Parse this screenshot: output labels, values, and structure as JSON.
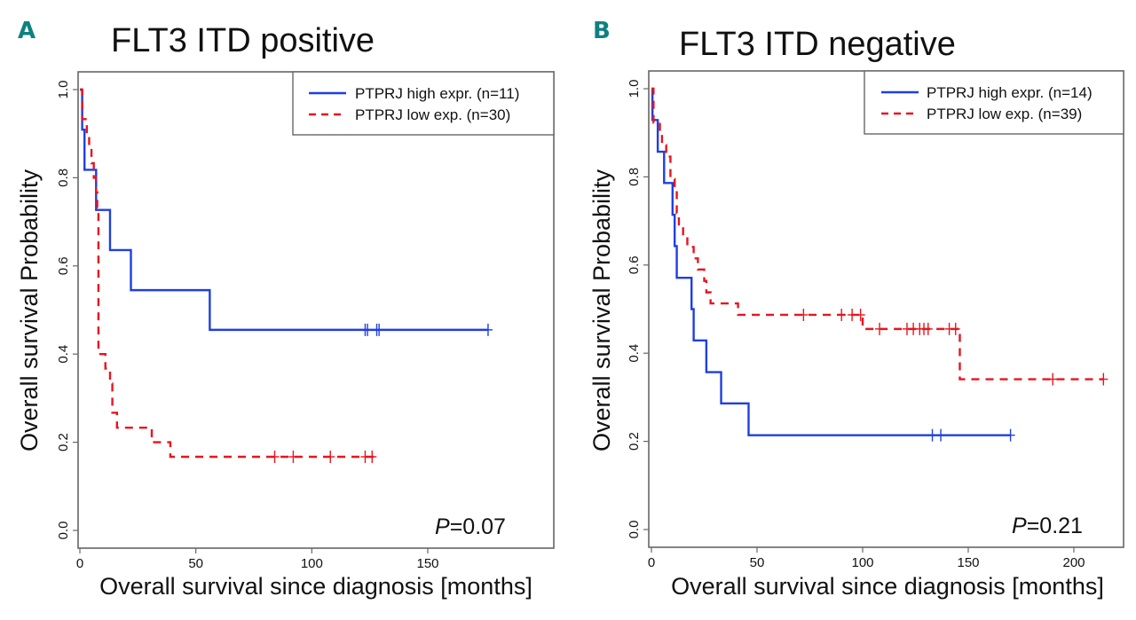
{
  "chart_data": [
    {
      "type": "line",
      "subtype": "kaplan-meier",
      "panel_label": "A",
      "title": "FLT3 ITD positive",
      "xlabel": "Overall survival since diagnosis [months]",
      "ylabel": "Overall survival Probability",
      "xlim": [
        0,
        185
      ],
      "ylim": [
        0,
        1
      ],
      "xticks": [
        0,
        50,
        100,
        150
      ],
      "xtick_labels": [
        "0",
        "50",
        "100",
        "150"
      ],
      "yticks": [
        0,
        0.2,
        0.4,
        0.6,
        0.8,
        1.0
      ],
      "ytick_labels": [
        "0.0",
        "0.2",
        "0.4",
        "0.6",
        "0.8",
        "1.0"
      ],
      "grid": false,
      "legend_position": "top-right",
      "annotation": {
        "prefix": "P",
        "text": "=0.07"
      },
      "series": [
        {
          "name": "PTPRJ high expr. (n=11)",
          "color": "#1f3fe0",
          "dash": "solid",
          "steps": [
            [
              0,
              1.0
            ],
            [
              1,
              0.909
            ],
            [
              2,
              0.818
            ],
            [
              7,
              0.727
            ],
            [
              13,
              0.636
            ],
            [
              22,
              0.545
            ],
            [
              56,
              0.455
            ],
            [
              176,
              0.455
            ]
          ],
          "censored": [
            [
              123,
              0.455
            ],
            [
              124,
              0.455
            ],
            [
              128,
              0.455
            ],
            [
              129,
              0.455
            ],
            [
              176,
              0.455
            ]
          ]
        },
        {
          "name": "PTPRJ low exp. (n=30)",
          "color": "#e8141e",
          "dash": "dashed",
          "steps": [
            [
              0,
              1.0
            ],
            [
              1,
              0.933
            ],
            [
              3,
              0.9
            ],
            [
              4,
              0.867
            ],
            [
              5,
              0.833
            ],
            [
              6,
              0.8
            ],
            [
              7,
              0.767
            ],
            [
              7.5,
              0.733
            ],
            [
              8,
              0.4
            ],
            [
              11,
              0.367
            ],
            [
              13,
              0.333
            ],
            [
              14,
              0.267
            ],
            [
              16,
              0.233
            ],
            [
              31,
              0.2
            ],
            [
              39,
              0.167
            ],
            [
              127,
              0.167
            ]
          ],
          "censored": [
            [
              84,
              0.167
            ],
            [
              92,
              0.167
            ],
            [
              108,
              0.167
            ],
            [
              123,
              0.167
            ],
            [
              126,
              0.167
            ]
          ]
        }
      ]
    },
    {
      "type": "line",
      "subtype": "kaplan-meier",
      "panel_label": "B",
      "title": "FLT3 ITD negative",
      "xlabel": "Overall survival since diagnosis [months]",
      "ylabel": "Overall survival Probability",
      "xlim": [
        0,
        224
      ],
      "ylim": [
        0,
        1
      ],
      "xticks": [
        0,
        50,
        100,
        150,
        200
      ],
      "xtick_labels": [
        "0",
        "50",
        "100",
        "150",
        "200"
      ],
      "yticks": [
        0,
        0.2,
        0.4,
        0.6,
        0.8,
        1.0
      ],
      "ytick_labels": [
        "0.0",
        "0.2",
        "0.4",
        "0.6",
        "0.8",
        "1.0"
      ],
      "grid": false,
      "legend_position": "top-right",
      "annotation": {
        "prefix": "P",
        "text": "=0.21"
      },
      "series": [
        {
          "name": "PTPRJ high expr. (n=14)",
          "color": "#1f3fe0",
          "dash": "solid",
          "steps": [
            [
              0,
              1.0
            ],
            [
              0.5,
              0.929
            ],
            [
              3,
              0.857
            ],
            [
              6,
              0.786
            ],
            [
              10,
              0.714
            ],
            [
              11,
              0.643
            ],
            [
              12,
              0.571
            ],
            [
              19,
              0.5
            ],
            [
              20,
              0.429
            ],
            [
              26,
              0.357
            ],
            [
              33,
              0.286
            ],
            [
              46,
              0.214
            ],
            [
              170,
              0.214
            ]
          ],
          "censored": [
            [
              133,
              0.214
            ],
            [
              137,
              0.214
            ],
            [
              170,
              0.214
            ]
          ]
        },
        {
          "name": "PTPRJ low exp. (n=39)",
          "color": "#e8141e",
          "dash": "dashed",
          "steps": [
            [
              0,
              1.0
            ],
            [
              1,
              0.923
            ],
            [
              4,
              0.897
            ],
            [
              5,
              0.872
            ],
            [
              7,
              0.846
            ],
            [
              9,
              0.795
            ],
            [
              11,
              0.769
            ],
            [
              12,
              0.718
            ],
            [
              13,
              0.692
            ],
            [
              15,
              0.667
            ],
            [
              17,
              0.641
            ],
            [
              20,
              0.615
            ],
            [
              22,
              0.59
            ],
            [
              25,
              0.564
            ],
            [
              26,
              0.538
            ],
            [
              28,
              0.513
            ],
            [
              41,
              0.487
            ],
            [
              100,
              0.455
            ],
            [
              146,
              0.341
            ],
            [
              214,
              0.341
            ]
          ],
          "censored": [
            [
              72,
              0.487
            ],
            [
              90,
              0.487
            ],
            [
              95,
              0.487
            ],
            [
              99,
              0.487
            ],
            [
              108,
              0.455
            ],
            [
              121,
              0.455
            ],
            [
              124,
              0.455
            ],
            [
              127,
              0.455
            ],
            [
              129,
              0.455
            ],
            [
              131,
              0.455
            ],
            [
              141,
              0.455
            ],
            [
              144,
              0.455
            ],
            [
              190,
              0.341
            ],
            [
              214,
              0.341
            ]
          ]
        }
      ]
    }
  ]
}
